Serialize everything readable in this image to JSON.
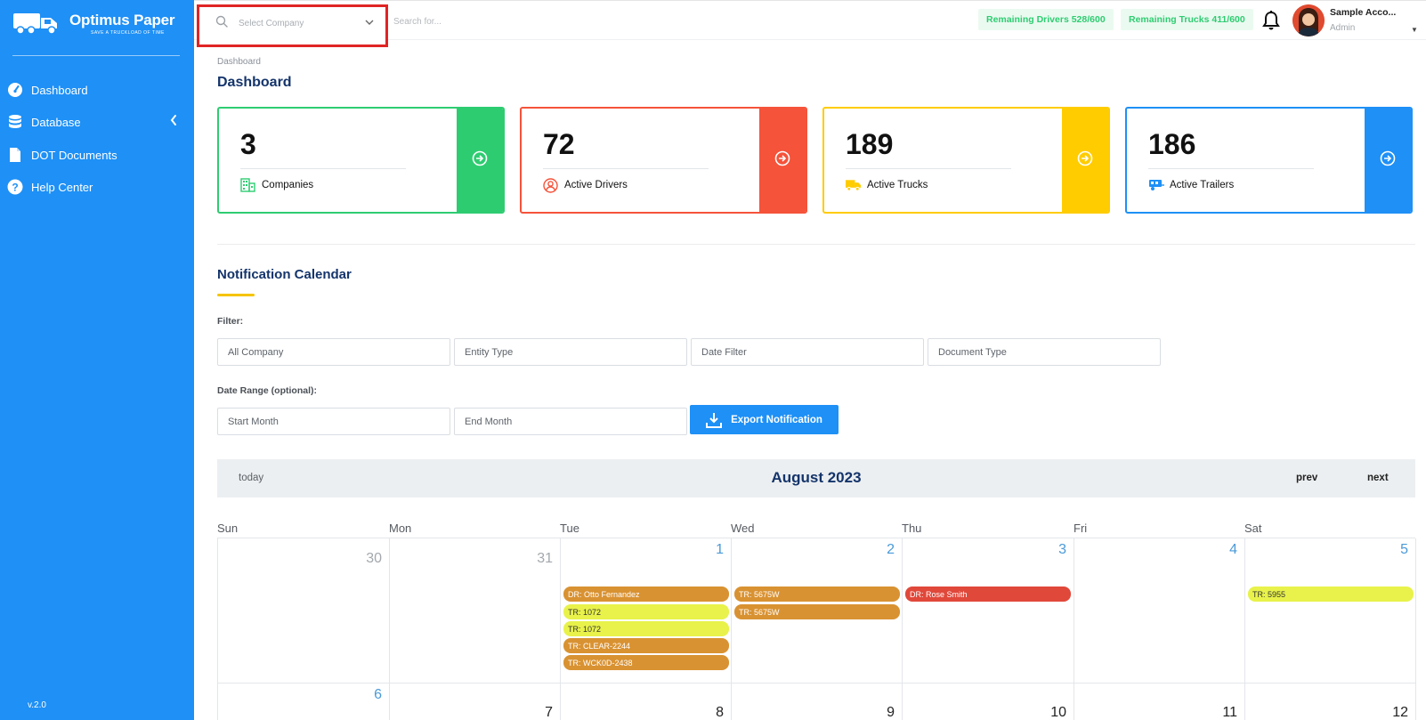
{
  "colors": {
    "sidebar": "#1e90f6",
    "green": "#2ecc71",
    "red": "#f5533a",
    "yellow": "#ffcc00",
    "blue": "#1e90f6",
    "event_orange": "#d99232",
    "event_yellow": "#e8f24a",
    "event_red": "#e0483a"
  },
  "sidebar": {
    "brand": "Optimus Paper",
    "tagline": "SAVE A TRUCKLOAD OF TIME",
    "items": [
      {
        "label": "Dashboard",
        "icon": "dashboard-gauge-icon"
      },
      {
        "label": "Database",
        "icon": "database-icon"
      },
      {
        "label": "DOT Documents",
        "icon": "document-icon"
      },
      {
        "label": "Help Center",
        "icon": "help-icon"
      }
    ],
    "version": "v.2.0"
  },
  "topbar": {
    "company_placeholder": "Select Company",
    "search_placeholder": "Search for...",
    "remaining_drivers": "Remaining Drivers 528/600",
    "remaining_trucks": "Remaining Trucks 411/600",
    "account_name": "Sample Acco...",
    "account_role": "Admin"
  },
  "breadcrumb": "Dashboard",
  "page_title": "Dashboard",
  "cards": [
    {
      "value": "3",
      "label": "Companies",
      "icon": "building-icon"
    },
    {
      "value": "72",
      "label": "Active Drivers",
      "icon": "user-circle-icon"
    },
    {
      "value": "189",
      "label": "Active Trucks",
      "icon": "truck-icon"
    },
    {
      "value": "186",
      "label": "Active Trailers",
      "icon": "trailer-icon"
    }
  ],
  "notification": {
    "title": "Notification Calendar",
    "filter_label": "Filter:",
    "filters": [
      "All Company",
      "Entity Type",
      "Date Filter",
      "Document Type"
    ],
    "date_range_label": "Date Range (optional):",
    "start_placeholder": "Start Month",
    "end_placeholder": "End Month",
    "export_label": "Export Notification"
  },
  "calendar": {
    "today": "today",
    "month": "August 2023",
    "prev": "prev",
    "next": "next",
    "days": [
      "Sun",
      "Mon",
      "Tue",
      "Wed",
      "Thu",
      "Fri",
      "Sat"
    ],
    "week1": [
      "30",
      "31",
      "1",
      "2",
      "3",
      "4",
      "5"
    ],
    "week2": [
      "6",
      "7",
      "8",
      "9",
      "10",
      "11",
      "12"
    ],
    "events": {
      "tue": [
        "DR: Otto Fernandez",
        "TR: 1072",
        "TR: 1072",
        "TR: CLEAR-2244",
        "TR: WCK0D-2438"
      ],
      "wed": [
        "TR: 5675W",
        "TR: 5675W"
      ],
      "thu": [
        "DR: Rose Smith"
      ],
      "sat": [
        "TR: 5955"
      ]
    }
  }
}
